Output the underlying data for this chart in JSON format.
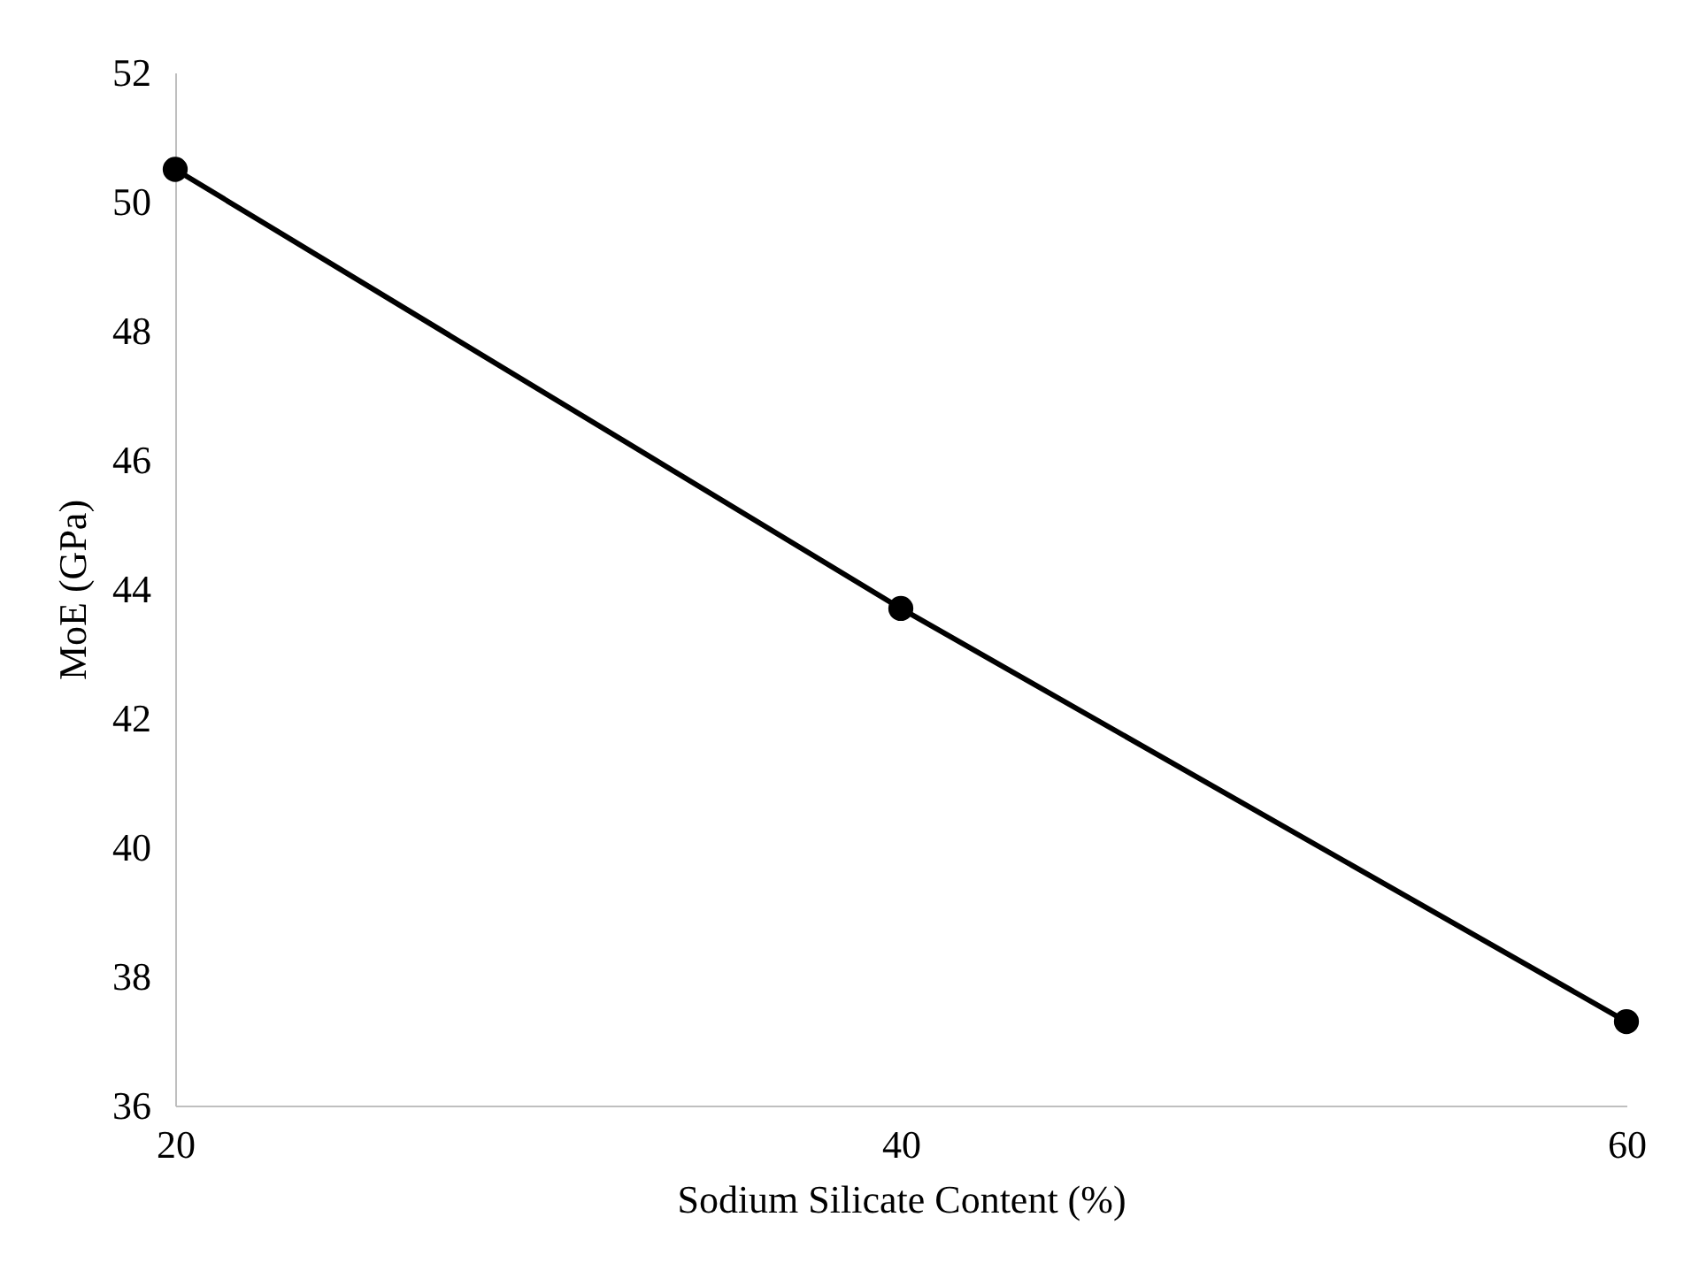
{
  "chart_data": {
    "type": "line",
    "xlabel": "Sodium Silicate Content (%)",
    "ylabel": "MoE (GPa)",
    "categories": [
      "20",
      "40",
      "60"
    ],
    "series": [
      {
        "color": "#000000",
        "values": [
          50.5,
          43.7,
          37.3
        ]
      }
    ],
    "ylim": [
      36,
      52
    ],
    "yticks": [
      36,
      38,
      40,
      42,
      44,
      46,
      48,
      50,
      52
    ],
    "grid": false,
    "legend": false,
    "marker": "circle",
    "line_style": "solid"
  }
}
